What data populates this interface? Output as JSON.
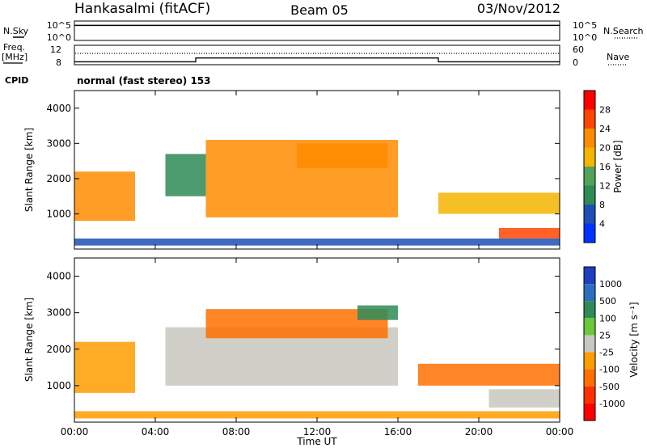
{
  "header": {
    "station": "Hankasalmi (fitACF)",
    "beam": "Beam 05",
    "date": "03/Nov/2012"
  },
  "top_panels": {
    "nsky_label": "N.Sky",
    "nsky_ticks": [
      "10^5",
      "10^0"
    ],
    "nsearch_label": "N.Search",
    "freq_label": "Freq.",
    "freq_unit": "[MHz]",
    "freq_ticks": [
      "12",
      "8"
    ],
    "nave_label": "Nave",
    "nave_ticks": [
      "60",
      "0"
    ],
    "cpid_label": "CPID",
    "cpid_text": "normal (fast stereo) 153"
  },
  "axes": {
    "ylabel": "Slant Range [km]",
    "yticks": [
      "4000",
      "3000",
      "2000",
      "1000"
    ],
    "xlabel": "Time UT",
    "xticks": [
      "00:00",
      "04:00",
      "08:00",
      "12:00",
      "16:00",
      "20:00",
      "00:00"
    ]
  },
  "colors": {
    "power_scale": [
      "#0033ff",
      "#1f4fb5",
      "#2e8b57",
      "#4fa35a",
      "#f4b400",
      "#ff8c00",
      "#ff4500",
      "#ff0000"
    ],
    "velocity_scale": [
      "#1f3fbf",
      "#2a6fbf",
      "#2e8b57",
      "#6ac83a",
      "#c8c8c0",
      "#ff9c00",
      "#ff7000",
      "#ff3000",
      "#ff0000"
    ],
    "ground_scatter": "#c8c8c0"
  },
  "chart_data": [
    {
      "type": "line",
      "panel": "N.Sky / N.Search",
      "x": [
        "00:00",
        "06:00",
        "12:00",
        "18:00",
        "24:00"
      ],
      "ylim": [
        "10^0",
        "10^5"
      ],
      "scale": "log",
      "series": [
        {
          "name": "N.Sky",
          "values": [
            "10^4",
            "10^4",
            "10^4",
            "10^4",
            "10^4"
          ]
        }
      ]
    },
    {
      "type": "line",
      "panel": "Freq / Nave",
      "x": [
        "00:00",
        "02:40",
        "02:50",
        "06:00",
        "18:00",
        "24:00"
      ],
      "series": [
        {
          "name": "Nave",
          "values": [
            7,
            7,
            7,
            20,
            7,
            7
          ]
        }
      ]
    },
    {
      "type": "heatmap",
      "panel": "Power",
      "colorbar_label": "Power [dB]",
      "colorbar_ticks": [
        "28",
        "24",
        "20",
        "16",
        "12",
        "8",
        "4"
      ],
      "xlim": [
        "00:00",
        "24:00"
      ],
      "ylim": [
        0,
        4500
      ],
      "regions": [
        {
          "t0": 0.0,
          "t1": 3.0,
          "r0": 800,
          "r1": 2200,
          "level": 24
        },
        {
          "t0": 4.5,
          "t1": 6.5,
          "r0": 1500,
          "r1": 2700,
          "level": 12
        },
        {
          "t0": 6.5,
          "t1": 16.0,
          "r0": 900,
          "r1": 3100,
          "level": 24
        },
        {
          "t0": 11.0,
          "t1": 15.5,
          "r0": 2300,
          "r1": 3000,
          "level": 24
        },
        {
          "t0": 18.0,
          "t1": 24.0,
          "r0": 1000,
          "r1": 1600,
          "level": 20
        },
        {
          "t0": 21.0,
          "t1": 24.0,
          "r0": 300,
          "r1": 600,
          "level": 28
        },
        {
          "t0": 0.0,
          "t1": 24.0,
          "r0": 100,
          "r1": 300,
          "level": 8
        }
      ]
    },
    {
      "type": "heatmap",
      "panel": "Velocity",
      "colorbar_label": "Velocity [m s⁻¹]",
      "colorbar_ticks": [
        "1000",
        "500",
        "100",
        "25",
        "-25",
        "-100",
        "-500",
        "-1000"
      ],
      "xlim": [
        "00:00",
        "24:00"
      ],
      "ylim": [
        0,
        4500
      ],
      "regions": [
        {
          "t0": 0.0,
          "t1": 3.0,
          "r0": 800,
          "r1": 2200,
          "value": -100
        },
        {
          "t0": 4.5,
          "t1": 16.0,
          "r0": 1000,
          "r1": 2600,
          "value": 0
        },
        {
          "t0": 6.5,
          "t1": 15.5,
          "r0": 2300,
          "r1": 3100,
          "value": -300
        },
        {
          "t0": 14.0,
          "t1": 16.0,
          "r0": 2800,
          "r1": 3200,
          "value": 300
        },
        {
          "t0": 17.0,
          "t1": 24.0,
          "r0": 1000,
          "r1": 1600,
          "value": -300
        },
        {
          "t0": 20.5,
          "t1": 24.0,
          "r0": 400,
          "r1": 900,
          "value": 0
        },
        {
          "t0": 0.0,
          "t1": 24.0,
          "r0": 100,
          "r1": 300,
          "value": -50
        }
      ]
    }
  ]
}
